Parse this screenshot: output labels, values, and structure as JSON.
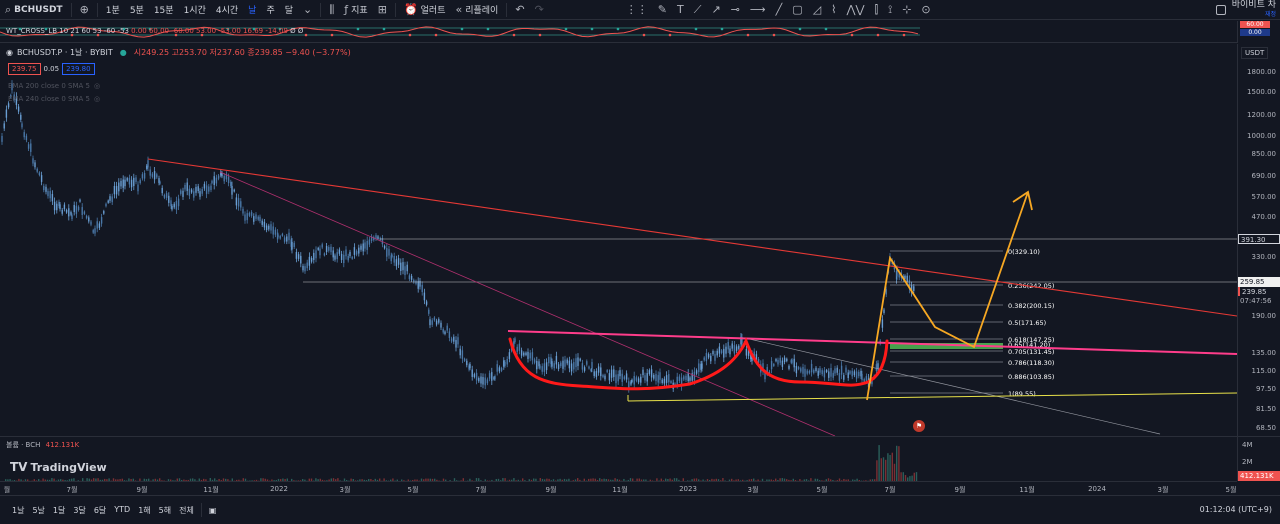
{
  "toolbar": {
    "symbol": "BCHUSDT",
    "intervals": [
      "1분",
      "5분",
      "15분",
      "1시간",
      "4시간",
      "날",
      "주",
      "달"
    ],
    "active_interval": "날",
    "indicators_label": "지표",
    "alert_label": "얼러트",
    "replay_label": "리플레이",
    "right_label": "바이비트 차",
    "right_sub": "재정",
    "icons": {
      "search": "search-icon",
      "add": "plus-icon",
      "chart_type": "candles-icon",
      "indicators": "indicators-icon",
      "layout": "layout-icon",
      "alert": "alarm-icon",
      "replay": "rewind-icon",
      "undo": "undo-icon",
      "redo": "redo-icon"
    }
  },
  "indicator_strip": {
    "label": "WT_CROSS_LB 10 21 60 53 -60 -53",
    "values": "0.00  60.00  -60.00  53.00  -53.00  16.69  -14.09",
    "tail": "Ø Ø",
    "scale_top": "60.00",
    "scale_mid": "0.00"
  },
  "legend": {
    "symbol": "BCHUSDT.P · 1날 · BYBIT",
    "ohlc": "시249.25 고253.70 저237.60 종239.85 −9.40 (−3.77%)",
    "bid": "239.75",
    "spread": "0.05",
    "ask": "239.80",
    "ema1": "EMA 200 close 0 SMA 5",
    "ema2": "EMA 240 close 0 SMA 5"
  },
  "price_axis": {
    "currency": "USDT",
    "ticks": [
      {
        "v": "1800.00",
        "y": 72
      },
      {
        "v": "1500.00",
        "y": 92
      },
      {
        "v": "1200.00",
        "y": 115
      },
      {
        "v": "1000.00",
        "y": 136
      },
      {
        "v": "850.00",
        "y": 154
      },
      {
        "v": "690.00",
        "y": 176
      },
      {
        "v": "570.00",
        "y": 197
      },
      {
        "v": "470.00",
        "y": 217
      },
      {
        "v": "330.00",
        "y": 257
      },
      {
        "v": "190.00",
        "y": 316
      },
      {
        "v": "135.00",
        "y": 353
      },
      {
        "v": "115.00",
        "y": 371
      },
      {
        "v": "97.50",
        "y": 389
      },
      {
        "v": "81.50",
        "y": 409
      },
      {
        "v": "68.50",
        "y": 428
      }
    ],
    "tag_391": "391.30",
    "tag_259": "259.85",
    "tag_last": "239.85",
    "tag_timer": "07:47:56"
  },
  "fib": [
    {
      "label": "0(329.10)",
      "y": 251
    },
    {
      "label": "0.236(242.05)",
      "y": 285
    },
    {
      "label": "0.382(200.15)",
      "y": 305
    },
    {
      "label": "0.5(171.65)",
      "y": 322
    },
    {
      "label": "0.618(147.25)",
      "y": 339
    },
    {
      "label": "0.65(141.20)",
      "y": 344
    },
    {
      "label": "0.705(131.45)",
      "y": 351
    },
    {
      "label": "0.786(118.30)",
      "y": 362
    },
    {
      "label": "0.886(103.85)",
      "y": 376
    },
    {
      "label": "1(89.55)",
      "y": 393
    }
  ],
  "volume": {
    "label": "볼륨 · BCH",
    "value": "412.131K",
    "ticks": [
      "4M",
      "2M"
    ],
    "tag": "412.131K"
  },
  "time_axis": [
    {
      "t": "월",
      "x": 7
    },
    {
      "t": "7월",
      "x": 72
    },
    {
      "t": "9월",
      "x": 142
    },
    {
      "t": "11월",
      "x": 211
    },
    {
      "t": "2022",
      "x": 279
    },
    {
      "t": "3월",
      "x": 345
    },
    {
      "t": "5월",
      "x": 413
    },
    {
      "t": "7월",
      "x": 481
    },
    {
      "t": "9월",
      "x": 551
    },
    {
      "t": "11월",
      "x": 620
    },
    {
      "t": "2023",
      "x": 688
    },
    {
      "t": "3월",
      "x": 753
    },
    {
      "t": "5월",
      "x": 822
    },
    {
      "t": "7월",
      "x": 890
    },
    {
      "t": "9월",
      "x": 960
    },
    {
      "t": "11월",
      "x": 1027
    },
    {
      "t": "2024",
      "x": 1097
    },
    {
      "t": "3월",
      "x": 1163
    },
    {
      "t": "5월",
      "x": 1231
    }
  ],
  "bottombar": {
    "ranges": [
      "1날",
      "5날",
      "1달",
      "3달",
      "6달",
      "YTD",
      "1해",
      "5해",
      "전체"
    ],
    "clock": "01:12:04 (UTC+9)"
  },
  "branding": "TradingView",
  "colors": {
    "bg": "#131722",
    "up": "#26a69a",
    "down": "#ef5350",
    "wick": "#6a9fd4",
    "trend_red": "#e53935",
    "neck": "#ff3d8b",
    "cup": "#ff1a1a",
    "arrow": "#f7a823",
    "support": "#e8e14a",
    "fib_box": "#4caf50"
  }
}
